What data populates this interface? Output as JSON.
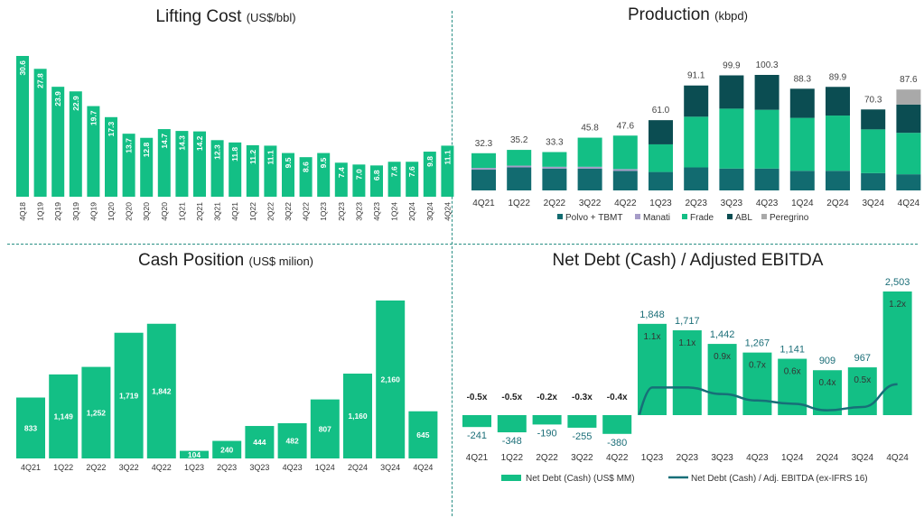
{
  "colors": {
    "green": "#13bf85",
    "teal": "#126b70",
    "dark": "#0b4d52",
    "lavender": "#a69cc8",
    "gray": "#a9a9a9",
    "line": "#176f78",
    "label_teal": "#1b6e78",
    "divider": "#2a8f85"
  },
  "chart_data": [
    {
      "id": "lifting",
      "type": "bar",
      "title": "Lifting Cost",
      "unit": "(US$/bbl)",
      "categories": [
        "4Q18",
        "1Q19",
        "2Q19",
        "3Q19",
        "4Q19",
        "1Q20",
        "2Q20",
        "3Q20",
        "4Q20",
        "1Q21",
        "2Q21",
        "3Q21",
        "4Q21",
        "1Q22",
        "2Q22",
        "3Q22",
        "4Q22",
        "1Q23",
        "2Q23",
        "3Q23",
        "4Q23",
        "1Q24",
        "2Q24",
        "3Q24",
        "4Q24"
      ],
      "values": [
        30.6,
        27.8,
        23.9,
        22.9,
        19.7,
        17.3,
        13.7,
        12.8,
        14.7,
        14.3,
        14.2,
        12.3,
        11.8,
        11.2,
        11.1,
        9.5,
        8.6,
        9.5,
        7.4,
        7.0,
        6.8,
        7.6,
        7.6,
        9.8,
        11.1
      ],
      "labels": [
        "30.6",
        "27.8",
        "23.9",
        "22.9",
        "19.7",
        "17.3",
        "13.7",
        "12.8",
        "14.7",
        "14.3",
        "14.2",
        "12.3",
        "11.8",
        "11.2",
        "11.1",
        "9.5",
        "8.6",
        "9.5",
        "7.4",
        "7.0",
        "6.8",
        "7.6",
        "7.6",
        "9.8",
        "11.1"
      ],
      "ylim": [
        0,
        32
      ]
    },
    {
      "id": "production",
      "type": "bar",
      "stacked": true,
      "title": "Production",
      "unit": "(kbpd)",
      "categories": [
        "4Q21",
        "1Q22",
        "2Q22",
        "3Q22",
        "4Q22",
        "1Q23",
        "2Q23",
        "3Q23",
        "4Q23",
        "1Q24",
        "2Q24",
        "3Q24",
        "4Q24"
      ],
      "totals": [
        "32.3",
        "35.2",
        "33.3",
        "45.8",
        "47.6",
        "61.0",
        "91.1",
        "99.9",
        "100.3",
        "88.3",
        "89.9",
        "70.3",
        "87.6"
      ],
      "series": [
        {
          "name": "Polvo + TBMT",
          "color": "teal",
          "values": [
            18,
            20,
            19,
            19,
            17,
            16,
            20,
            19,
            19,
            17,
            17,
            15,
            14
          ]
        },
        {
          "name": "Manati",
          "color": "lavender",
          "values": [
            1.5,
            1.5,
            1.5,
            1.5,
            1.5,
            0,
            0,
            0,
            0,
            0,
            0,
            0,
            0
          ]
        },
        {
          "name": "Frade",
          "color": "green",
          "values": [
            12.8,
            13.7,
            12.8,
            25.3,
            29.1,
            24,
            44,
            52,
            51,
            46,
            48,
            38,
            36
          ]
        },
        {
          "name": "ABL",
          "color": "dark",
          "values": [
            0,
            0,
            0,
            0,
            0,
            21,
            27.1,
            28.9,
            30.3,
            25.3,
            24.9,
            17.3,
            24.6
          ]
        },
        {
          "name": "Peregrino",
          "color": "gray",
          "values": [
            0,
            0,
            0,
            0,
            0,
            0,
            0,
            0,
            0,
            0,
            0,
            0,
            13
          ]
        }
      ],
      "ylim": [
        0,
        110
      ],
      "legend_position": "bottom"
    },
    {
      "id": "cash",
      "type": "bar",
      "title": "Cash Position",
      "unit": "(US$ milion)",
      "categories": [
        "4Q21",
        "1Q22",
        "2Q22",
        "3Q22",
        "4Q22",
        "1Q23",
        "2Q23",
        "3Q23",
        "4Q23",
        "1Q24",
        "2Q24",
        "3Q24",
        "4Q24"
      ],
      "values": [
        833,
        1149,
        1252,
        1719,
        1842,
        104,
        240,
        444,
        482,
        807,
        1160,
        2160,
        645
      ],
      "labels": [
        "833",
        "1,149",
        "1,252",
        "1,719",
        "1,842",
        "104",
        "240",
        "444",
        "482",
        "807",
        "1,160",
        "2,160",
        "645"
      ],
      "ylim": [
        0,
        2300
      ]
    },
    {
      "id": "netdebt",
      "type": "bar+line",
      "title": "Net Debt (Cash) / Adjusted EBITDA",
      "unit": "",
      "categories": [
        "4Q21",
        "1Q22",
        "2Q22",
        "3Q22",
        "4Q22",
        "1Q23",
        "2Q23",
        "3Q23",
        "4Q23",
        "1Q24",
        "2Q24",
        "3Q24",
        "4Q24"
      ],
      "values": [
        -241,
        -348,
        -190,
        -255,
        -380,
        1848,
        1717,
        1442,
        1267,
        1141,
        909,
        967,
        2503
      ],
      "labels": [
        "-241",
        "-348",
        "-190",
        "-255",
        "-380",
        "1,848",
        "1,717",
        "1,442",
        "1,267",
        "1,141",
        "909",
        "967",
        "2,503"
      ],
      "ratio": [
        -0.5,
        -0.5,
        -0.2,
        -0.3,
        -0.4,
        1.1,
        1.1,
        0.9,
        0.7,
        0.6,
        0.4,
        0.5,
        1.2
      ],
      "ratio_labels": [
        "-0.5x",
        "-0.5x",
        "-0.2x",
        "-0.3x",
        "-0.4x",
        "1.1x",
        "1.1x",
        "0.9x",
        "0.7x",
        "0.6x",
        "0.4x",
        "0.5x",
        "1.2x"
      ],
      "ylim": [
        -400,
        2700
      ],
      "legend": {
        "bar": "Net Debt (Cash) (US$ MM)",
        "line": "Net Debt (Cash) / Adj. EBITDA (ex-IFRS 16)"
      }
    }
  ]
}
